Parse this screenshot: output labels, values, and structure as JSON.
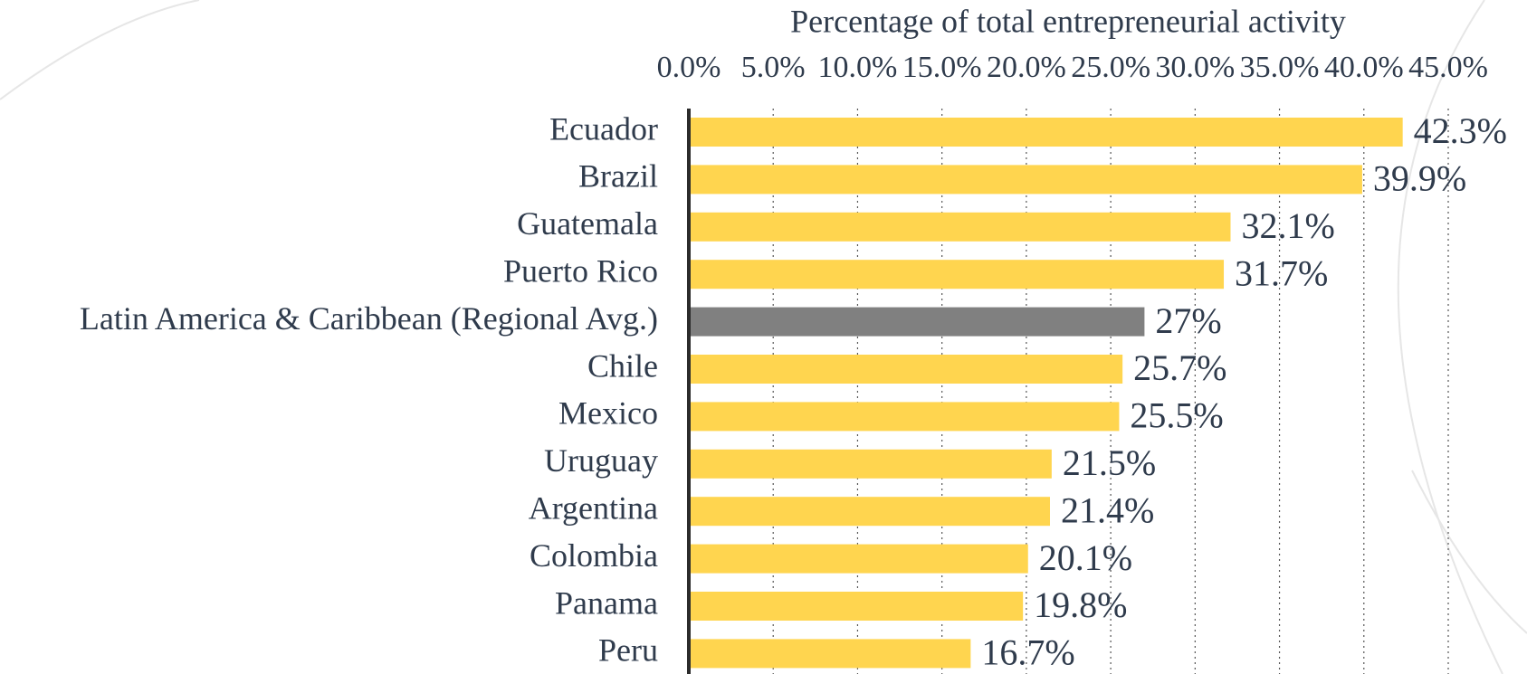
{
  "chart_data": {
    "type": "barh",
    "x_label": "Percentage of total entrepreneurial activity",
    "categories": [
      "Ecuador",
      "Brazil",
      "Guatemala",
      "Puerto Rico",
      "Latin America & Caribbean (Regional Avg.)",
      "Chile",
      "Mexico",
      "Uruguay",
      "Argentina",
      "Colombia",
      "Panama",
      "Peru"
    ],
    "values": [
      42.3,
      39.9,
      32.1,
      31.7,
      27,
      25.7,
      25.5,
      21.5,
      21.4,
      20.1,
      19.8,
      16.7
    ],
    "value_labels": [
      "42.3%",
      "39.9%",
      "32.1%",
      "31.7%",
      "27%",
      "25.7%",
      "25.5%",
      "21.5%",
      "21.4%",
      "20.1%",
      "19.8%",
      "16.7%"
    ],
    "colors": [
      "#ffd54f",
      "#ffd54f",
      "#ffd54f",
      "#ffd54f",
      "#808080",
      "#ffd54f",
      "#ffd54f",
      "#ffd54f",
      "#ffd54f",
      "#ffd54f",
      "#ffd54f",
      "#ffd54f"
    ],
    "xlim": [
      0,
      45
    ],
    "xticks": [
      {
        "value": 0,
        "label": "0.0%"
      },
      {
        "value": 5,
        "label": "5.0%"
      },
      {
        "value": 10,
        "label": "10.0%"
      },
      {
        "value": 15,
        "label": "15.0%"
      },
      {
        "value": 20,
        "label": "20.0%"
      },
      {
        "value": 25,
        "label": "25.0%"
      },
      {
        "value": 30,
        "label": "30.0%"
      },
      {
        "value": 35,
        "label": "35.0%"
      },
      {
        "value": 40,
        "label": "40.0%"
      },
      {
        "value": 45,
        "label": "45.0%"
      }
    ],
    "grid": true
  }
}
